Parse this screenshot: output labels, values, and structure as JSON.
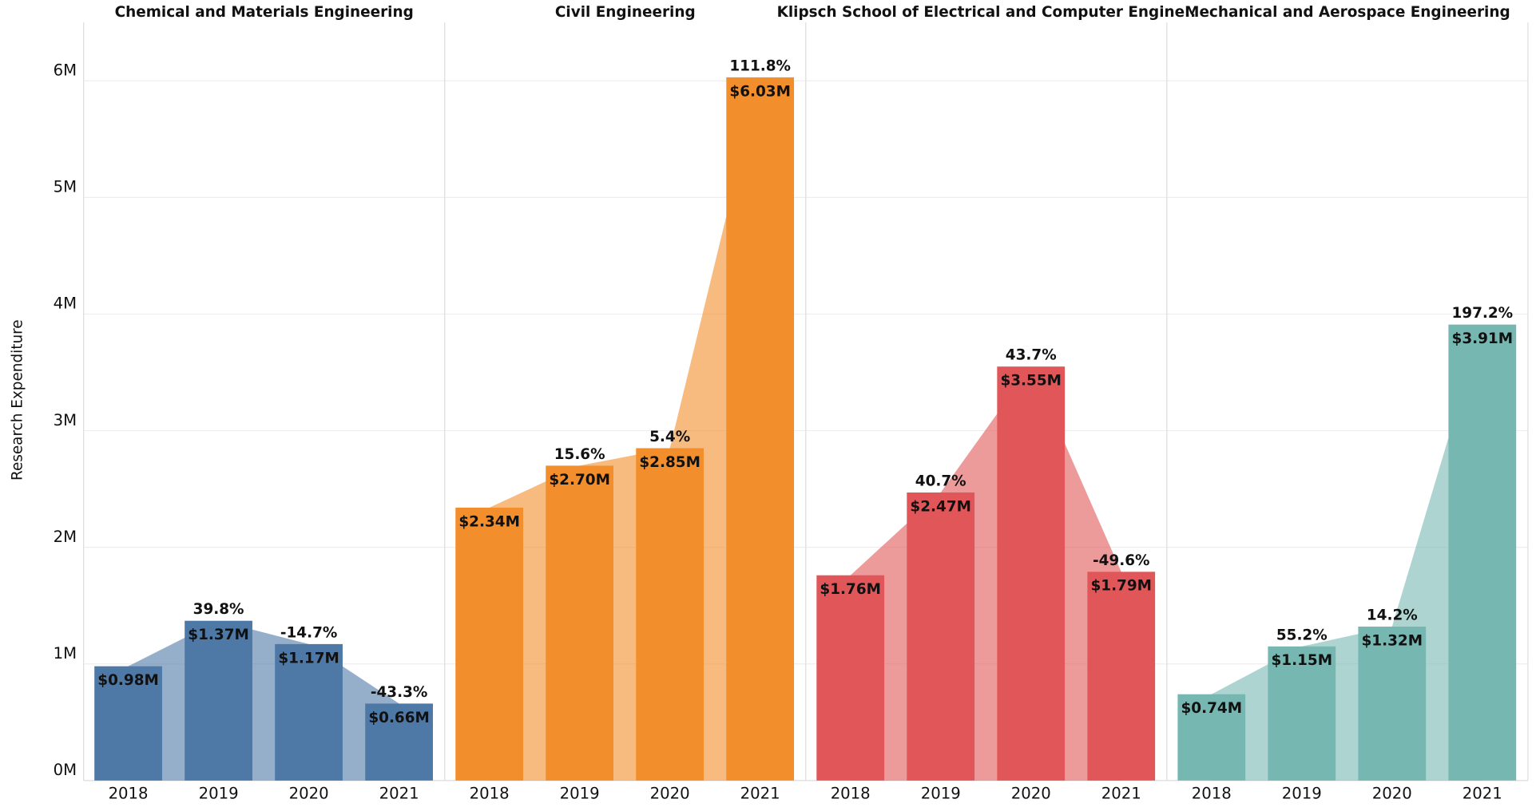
{
  "chart_data": {
    "type": "bar",
    "y_label": "Research Expenditure",
    "ylim": [
      0,
      6500000
    ],
    "yticks": [
      {
        "value": 0,
        "label": "0M"
      },
      {
        "value": 1000000,
        "label": "1M"
      },
      {
        "value": 2000000,
        "label": "2M"
      },
      {
        "value": 3000000,
        "label": "3M"
      },
      {
        "value": 4000000,
        "label": "4M"
      },
      {
        "value": 5000000,
        "label": "5M"
      },
      {
        "value": 6000000,
        "label": "6M"
      }
    ],
    "grid": true,
    "panels": [
      {
        "title": "Chemical and Materials Engineering",
        "color": "#4e79a7",
        "categories": [
          "2018",
          "2019",
          "2020",
          "2021"
        ],
        "values": [
          980000,
          1370000,
          1170000,
          660000
        ],
        "value_labels": [
          "$0.98M",
          "$1.37M",
          "$1.17M",
          "$0.66M"
        ],
        "change_labels": [
          null,
          "39.8%",
          "-14.7%",
          "-43.3%"
        ]
      },
      {
        "title": "Civil Engineering",
        "color": "#f28e2b",
        "categories": [
          "2018",
          "2019",
          "2020",
          "2021"
        ],
        "values": [
          2340000,
          2700000,
          2850000,
          6030000
        ],
        "value_labels": [
          "$2.34M",
          "$2.70M",
          "$2.85M",
          "$6.03M"
        ],
        "change_labels": [
          null,
          "15.6%",
          "5.4%",
          "111.8%"
        ]
      },
      {
        "title": "Klipsch School of Electrical and Computer Engine..",
        "color": "#e15759",
        "categories": [
          "2018",
          "2019",
          "2020",
          "2021"
        ],
        "values": [
          1760000,
          2470000,
          3550000,
          1790000
        ],
        "value_labels": [
          "$1.76M",
          "$2.47M",
          "$3.55M",
          "$1.79M"
        ],
        "change_labels": [
          null,
          "40.7%",
          "43.7%",
          "-49.6%"
        ]
      },
      {
        "title": "Mechanical and Aerospace Engineering",
        "color": "#76b7b2",
        "categories": [
          "2018",
          "2019",
          "2020",
          "2021"
        ],
        "values": [
          740000,
          1150000,
          1320000,
          3910000
        ],
        "value_labels": [
          "$0.74M",
          "$1.15M",
          "$1.32M",
          "$3.91M"
        ],
        "change_labels": [
          null,
          "55.2%",
          "14.2%",
          "197.2%"
        ]
      }
    ]
  }
}
